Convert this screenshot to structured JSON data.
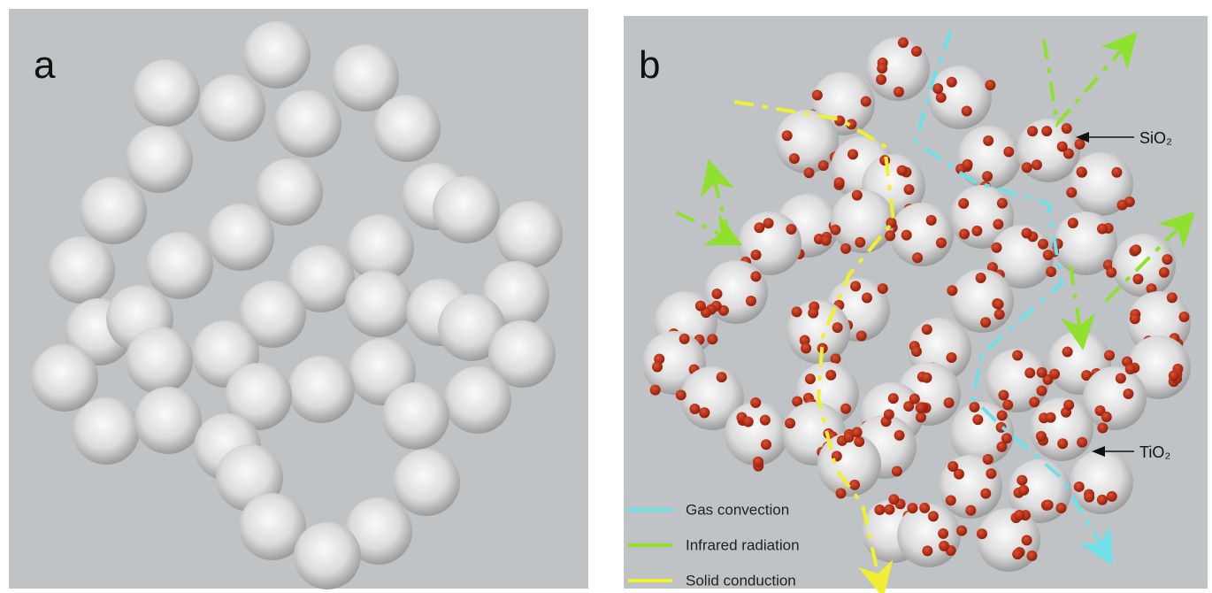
{
  "panels": [
    {
      "label": "a"
    },
    {
      "label": "b",
      "callouts": [
        "SiO₂",
        "TiO₂"
      ],
      "legend": [
        "Gas convection",
        "Infrared radiation",
        "Solid conduction"
      ]
    }
  ]
}
